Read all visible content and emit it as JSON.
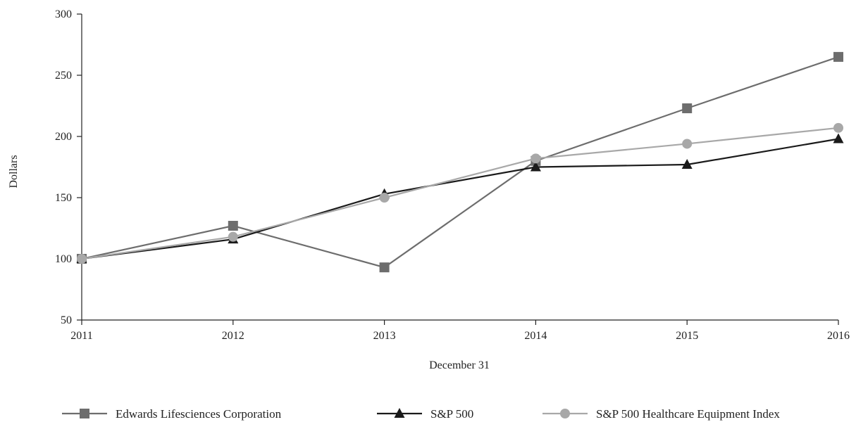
{
  "chart_data": {
    "type": "line",
    "title": "",
    "xlabel": "December 31",
    "ylabel": "Dollars",
    "x": [
      "2011",
      "2012",
      "2013",
      "2014",
      "2015",
      "2016"
    ],
    "ylim": [
      50,
      300
    ],
    "yticks": [
      50,
      100,
      150,
      200,
      250,
      300
    ],
    "grid": false,
    "legend_position": "bottom",
    "series": [
      {
        "name": "Edwards Lifesciences Corporation",
        "values": [
          100,
          127,
          93,
          180,
          223,
          265
        ],
        "color": "#6d6d6d",
        "marker": "square"
      },
      {
        "name": "S&P 500",
        "values": [
          100,
          116,
          153,
          175,
          177,
          198
        ],
        "color": "#1a1a1a",
        "marker": "triangle"
      },
      {
        "name": "S&P 500 Healthcare Equipment Index",
        "values": [
          100,
          118,
          150,
          182,
          194,
          207
        ],
        "color": "#a8a8a8",
        "marker": "circle"
      }
    ]
  }
}
